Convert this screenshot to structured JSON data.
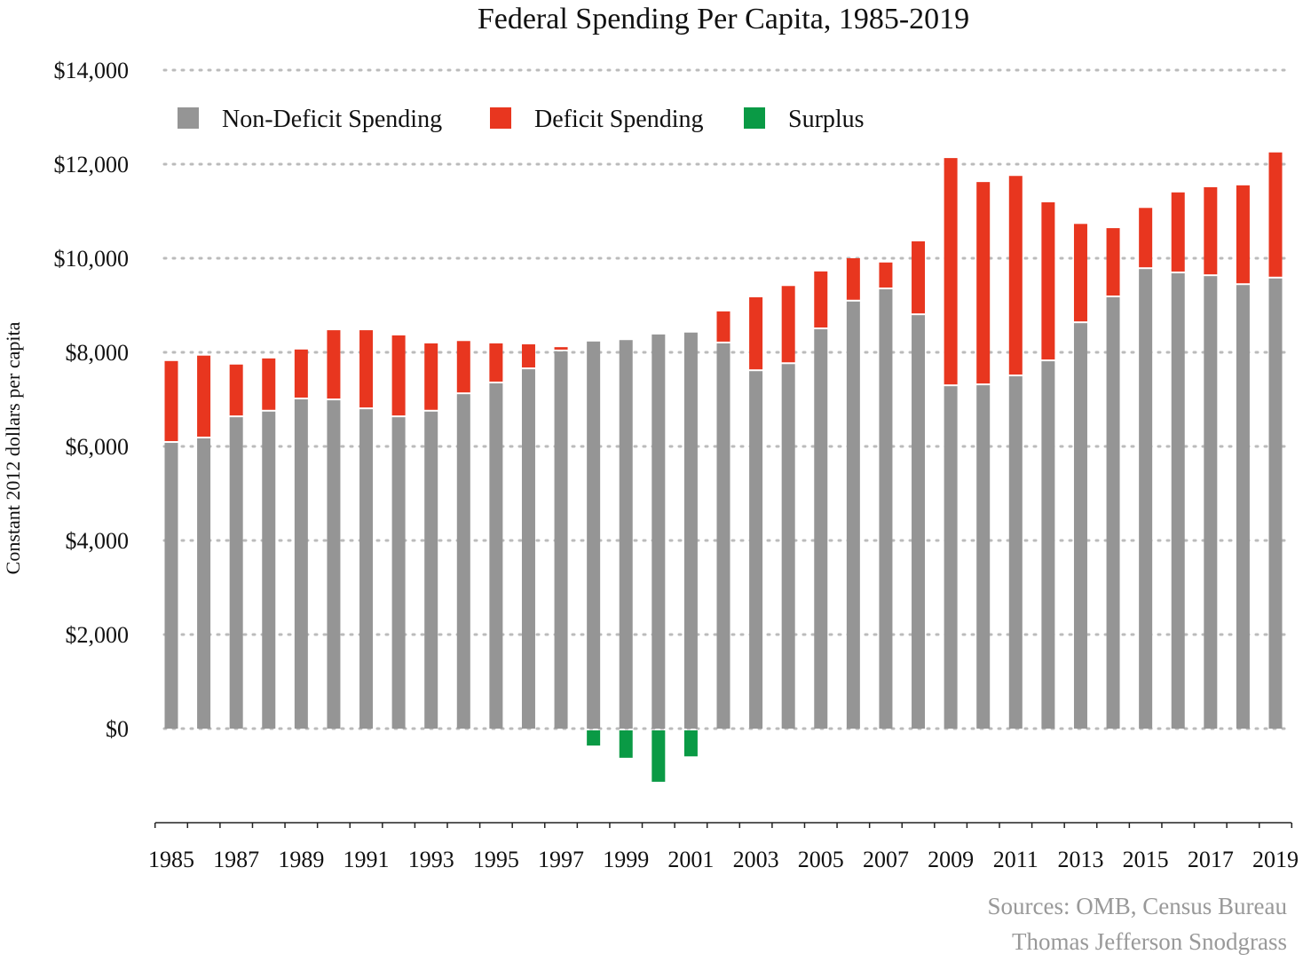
{
  "chart_data": {
    "type": "bar",
    "stacked": true,
    "title": "Federal Spending Per Capita, 1985-2019",
    "xlabel": "",
    "ylabel": "Constant 2012 dollars per capita",
    "ylim": [
      -2000,
      14000
    ],
    "yticks": [
      0,
      2000,
      4000,
      6000,
      8000,
      10000,
      12000,
      14000
    ],
    "ytick_labels": [
      "$0",
      "$2,000",
      "$4,000",
      "$6,000",
      "$8,000",
      "$10,000",
      "$12,000",
      "$14,000"
    ],
    "grid": "horizontal dotted",
    "legend_placement": "top-left",
    "categories": [
      1985,
      1986,
      1987,
      1988,
      1989,
      1990,
      1991,
      1992,
      1993,
      1994,
      1995,
      1996,
      1997,
      1998,
      1999,
      2000,
      2001,
      2002,
      2003,
      2004,
      2005,
      2006,
      2007,
      2008,
      2009,
      2010,
      2011,
      2012,
      2013,
      2014,
      2015,
      2016,
      2017,
      2018,
      2019
    ],
    "xtick_labels": [
      "1985",
      "1987",
      "1989",
      "1991",
      "1993",
      "1995",
      "1997",
      "1999",
      "2001",
      "2003",
      "2005",
      "2007",
      "2009",
      "2011",
      "2013",
      "2015",
      "2017",
      "2019"
    ],
    "series": [
      {
        "name": "Non-Deficit Spending",
        "color": "#959595",
        "values": [
          6075,
          6170,
          6620,
          6740,
          7000,
          6980,
          6790,
          6620,
          6740,
          7110,
          7340,
          7640,
          8020,
          8230,
          8260,
          8380,
          8420,
          8190,
          7600,
          7750,
          8490,
          9080,
          9340,
          8790,
          7280,
          7300,
          7490,
          7810,
          8620,
          9170,
          9770,
          9680,
          9620,
          9430,
          9570
        ]
      },
      {
        "name": "Deficit Spending",
        "color": "#e8361f",
        "values": [
          1740,
          1760,
          1120,
          1130,
          1060,
          1490,
          1680,
          1740,
          1450,
          1130,
          850,
          530,
          90,
          0,
          0,
          0,
          0,
          680,
          1570,
          1660,
          1230,
          920,
          570,
          1570,
          4850,
          4320,
          4260,
          3380,
          2110,
          1470,
          1300,
          1720,
          1890,
          2120,
          2680
        ]
      },
      {
        "name": "Surplus",
        "color": "#0a9a45",
        "values": [
          0,
          0,
          0,
          0,
          0,
          0,
          0,
          0,
          0,
          0,
          0,
          0,
          0,
          -360,
          -620,
          -1130,
          -590,
          0,
          0,
          0,
          0,
          0,
          0,
          0,
          0,
          0,
          0,
          0,
          0,
          0,
          0,
          0,
          0,
          0,
          0
        ]
      }
    ],
    "annotations": [
      "Sources: OMB, Census Bureau",
      "Thomas Jefferson Snodgrass"
    ]
  }
}
